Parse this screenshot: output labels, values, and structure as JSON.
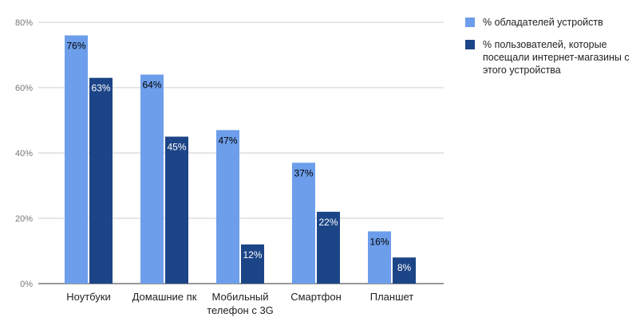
{
  "chart_data": {
    "type": "bar",
    "categories": [
      "Ноутбуки",
      "Домашние пк",
      "Мобильный телефон с 3G",
      "Смартфон",
      "Планшет"
    ],
    "category_lines": [
      [
        "Ноутбуки"
      ],
      [
        "Домашние пк"
      ],
      [
        "Мобильный",
        "телефон с 3G"
      ],
      [
        "Смартфон"
      ],
      [
        "Планшет"
      ]
    ],
    "series": [
      {
        "name": "% обладателей устройств",
        "values": [
          76,
          64,
          47,
          37,
          16
        ],
        "color": "#6d9eeb",
        "label_color": "#000000"
      },
      {
        "name": "% пользователей, которые посещали интернет-магазины с этого устройства",
        "values": [
          63,
          45,
          12,
          22,
          8
        ],
        "color": "#1c4587",
        "label_color": "#ffffff"
      }
    ],
    "data_labels": [
      [
        "76%",
        "64%",
        "47%",
        "37%",
        "16%"
      ],
      [
        "63%",
        "45%",
        "12%",
        "22%",
        "8%"
      ]
    ],
    "ylim": [
      0,
      80
    ],
    "yticks": [
      0,
      20,
      40,
      60,
      80
    ],
    "ytick_labels": [
      "0%",
      "20%",
      "40%",
      "60%",
      "80%"
    ],
    "grid": true,
    "legend_position": "right"
  },
  "legend": {
    "items": [
      {
        "label": "% обладателей устройств",
        "color": "#6d9eeb"
      },
      {
        "label": "% пользователей, которые посещали интернет-магазины с этого устройства",
        "color": "#1c4587"
      }
    ]
  }
}
